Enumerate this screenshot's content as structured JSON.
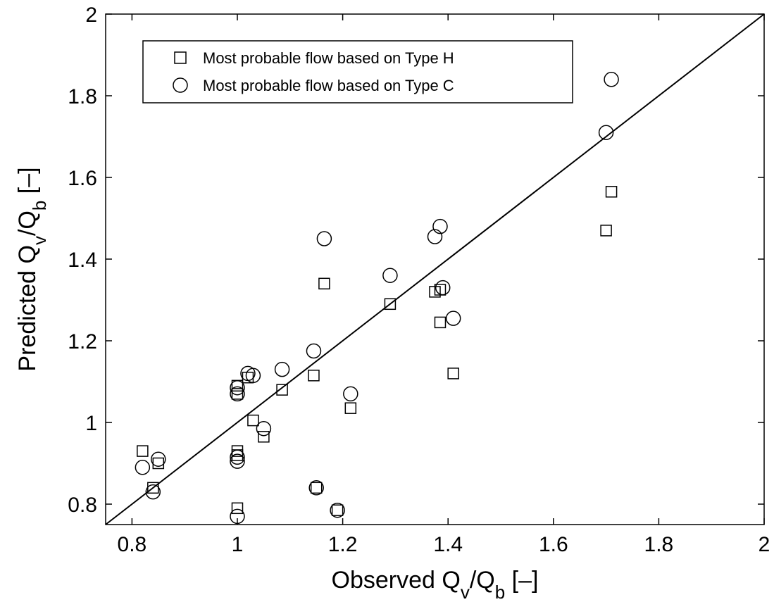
{
  "chart_data": {
    "type": "scatter",
    "xlabel": "Observed Q_v/Q_b [–]",
    "ylabel": "Predicted Q_v/Q_b [–]",
    "xlim": [
      0.75,
      2.0
    ],
    "ylim": [
      0.75,
      2.0
    ],
    "x_ticks": [
      "0.8",
      "1",
      "1.2",
      "1.4",
      "1.6",
      "1.8",
      "2"
    ],
    "y_ticks": [
      "0.8",
      "1",
      "1.2",
      "1.4",
      "1.6",
      "1.8",
      "2"
    ],
    "grid": false,
    "legend_position": "top-left",
    "reference_line": {
      "type": "identity",
      "from": [
        0.75,
        0.75
      ],
      "to": [
        2.0,
        2.0
      ]
    },
    "series": [
      {
        "name": "Most probable flow based on Type H",
        "marker": "square",
        "points": [
          [
            0.82,
            0.93
          ],
          [
            0.84,
            0.84
          ],
          [
            0.85,
            0.9
          ],
          [
            1.0,
            0.79
          ],
          [
            1.0,
            0.92
          ],
          [
            1.0,
            0.93
          ],
          [
            1.0,
            1.07
          ],
          [
            1.0,
            1.09
          ],
          [
            1.02,
            1.11
          ],
          [
            1.03,
            1.005
          ],
          [
            1.05,
            0.965
          ],
          [
            1.085,
            1.08
          ],
          [
            1.145,
            1.115
          ],
          [
            1.15,
            0.84
          ],
          [
            1.165,
            1.34
          ],
          [
            1.19,
            0.785
          ],
          [
            1.215,
            1.035
          ],
          [
            1.29,
            1.29
          ],
          [
            1.375,
            1.32
          ],
          [
            1.385,
            1.325
          ],
          [
            1.385,
            1.245
          ],
          [
            1.41,
            1.12
          ],
          [
            1.7,
            1.47
          ],
          [
            1.71,
            1.565
          ]
        ]
      },
      {
        "name": "Most probable flow based on Type C",
        "marker": "circle",
        "points": [
          [
            0.82,
            0.89
          ],
          [
            0.84,
            0.83
          ],
          [
            0.85,
            0.91
          ],
          [
            1.0,
            0.77
          ],
          [
            1.0,
            0.905
          ],
          [
            1.0,
            0.915
          ],
          [
            1.0,
            1.07
          ],
          [
            1.0,
            1.085
          ],
          [
            1.02,
            1.12
          ],
          [
            1.03,
            1.115
          ],
          [
            1.05,
            0.985
          ],
          [
            1.085,
            1.13
          ],
          [
            1.145,
            1.175
          ],
          [
            1.15,
            0.84
          ],
          [
            1.165,
            1.45
          ],
          [
            1.19,
            0.785
          ],
          [
            1.215,
            1.07
          ],
          [
            1.29,
            1.36
          ],
          [
            1.375,
            1.455
          ],
          [
            1.385,
            1.48
          ],
          [
            1.39,
            1.33
          ],
          [
            1.41,
            1.255
          ],
          [
            1.7,
            1.71
          ],
          [
            1.71,
            1.84
          ]
        ]
      }
    ]
  }
}
